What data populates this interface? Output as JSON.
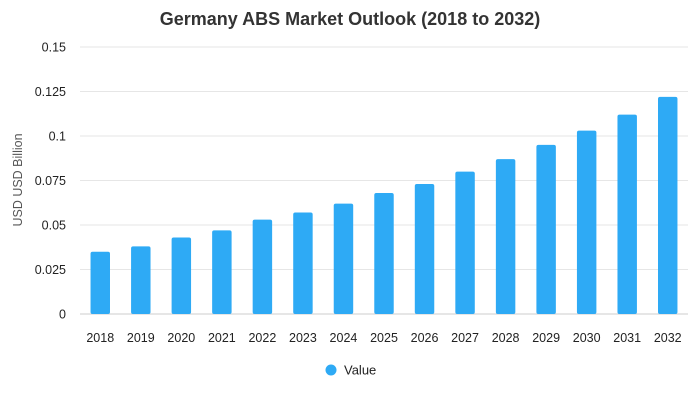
{
  "chart_data": {
    "type": "bar",
    "title": "Germany ABS Market Outlook (2018 to 2032)",
    "xlabel": "",
    "ylabel": "USD USD Billion",
    "categories": [
      "2018",
      "2019",
      "2020",
      "2021",
      "2022",
      "2023",
      "2024",
      "2025",
      "2026",
      "2027",
      "2028",
      "2029",
      "2030",
      "2031",
      "2032"
    ],
    "series": [
      {
        "name": "Value",
        "color": "#2eaaf5",
        "values": [
          0.035,
          0.038,
          0.043,
          0.047,
          0.053,
          0.057,
          0.062,
          0.068,
          0.073,
          0.08,
          0.087,
          0.095,
          0.103,
          0.112,
          0.122
        ]
      }
    ],
    "yticks": [
      "0",
      "0.025",
      "0.05",
      "0.075",
      "0.1",
      "0.125",
      "0.15"
    ],
    "ylim": [
      0,
      0.15
    ],
    "grid": true,
    "legend_position": "bottom-center"
  }
}
